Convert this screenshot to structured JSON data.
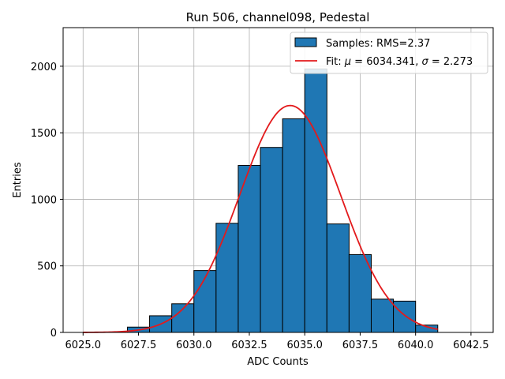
{
  "chart_data": {
    "type": "bar",
    "title": "Run 506, channel098, Pedestal",
    "xlabel": "ADC Counts",
    "ylabel": "Entries",
    "xlim": [
      6024.1,
      6043.5
    ],
    "ylim": [
      0,
      2290
    ],
    "xticks": [
      6025.0,
      6027.5,
      6030.0,
      6032.5,
      6035.0,
      6037.5,
      6040.0,
      6042.5
    ],
    "xtick_labels": [
      "6025.0",
      "6027.5",
      "6030.0",
      "6032.5",
      "6035.0",
      "6037.5",
      "6040.0",
      "6042.5"
    ],
    "yticks": [
      0,
      500,
      1000,
      1500,
      2000
    ],
    "ytick_labels": [
      "0",
      "500",
      "1000",
      "1500",
      "2000"
    ],
    "grid": true,
    "legend_position": "top-right",
    "histogram": {
      "name": "Samples: RMS=2.37",
      "bin_edges": [
        6027.0,
        6028.0,
        6029.0,
        6030.0,
        6031.0,
        6032.0,
        6033.0,
        6034.0,
        6035.0,
        6036.0,
        6037.0,
        6038.0,
        6039.0,
        6040.0,
        6041.0
      ],
      "counts": [
        40,
        125,
        215,
        465,
        820,
        1255,
        1390,
        1605,
        1980,
        815,
        585,
        250,
        235,
        55
      ],
      "color": "#1f77b4",
      "edge_color": "#000000"
    },
    "fit": {
      "name": "Fit: μ = 6034.341, σ = 2.273",
      "name_parts": {
        "prefix": "Fit: ",
        "mu": "μ",
        "mid": " = 6034.341, ",
        "sigma": "σ",
        "suffix": " = 2.273"
      },
      "mu": 6034.341,
      "sigma": 2.273,
      "amplitude": 1705,
      "x_range": [
        6025.0,
        6041.0
      ],
      "color": "#e31a1c"
    }
  }
}
